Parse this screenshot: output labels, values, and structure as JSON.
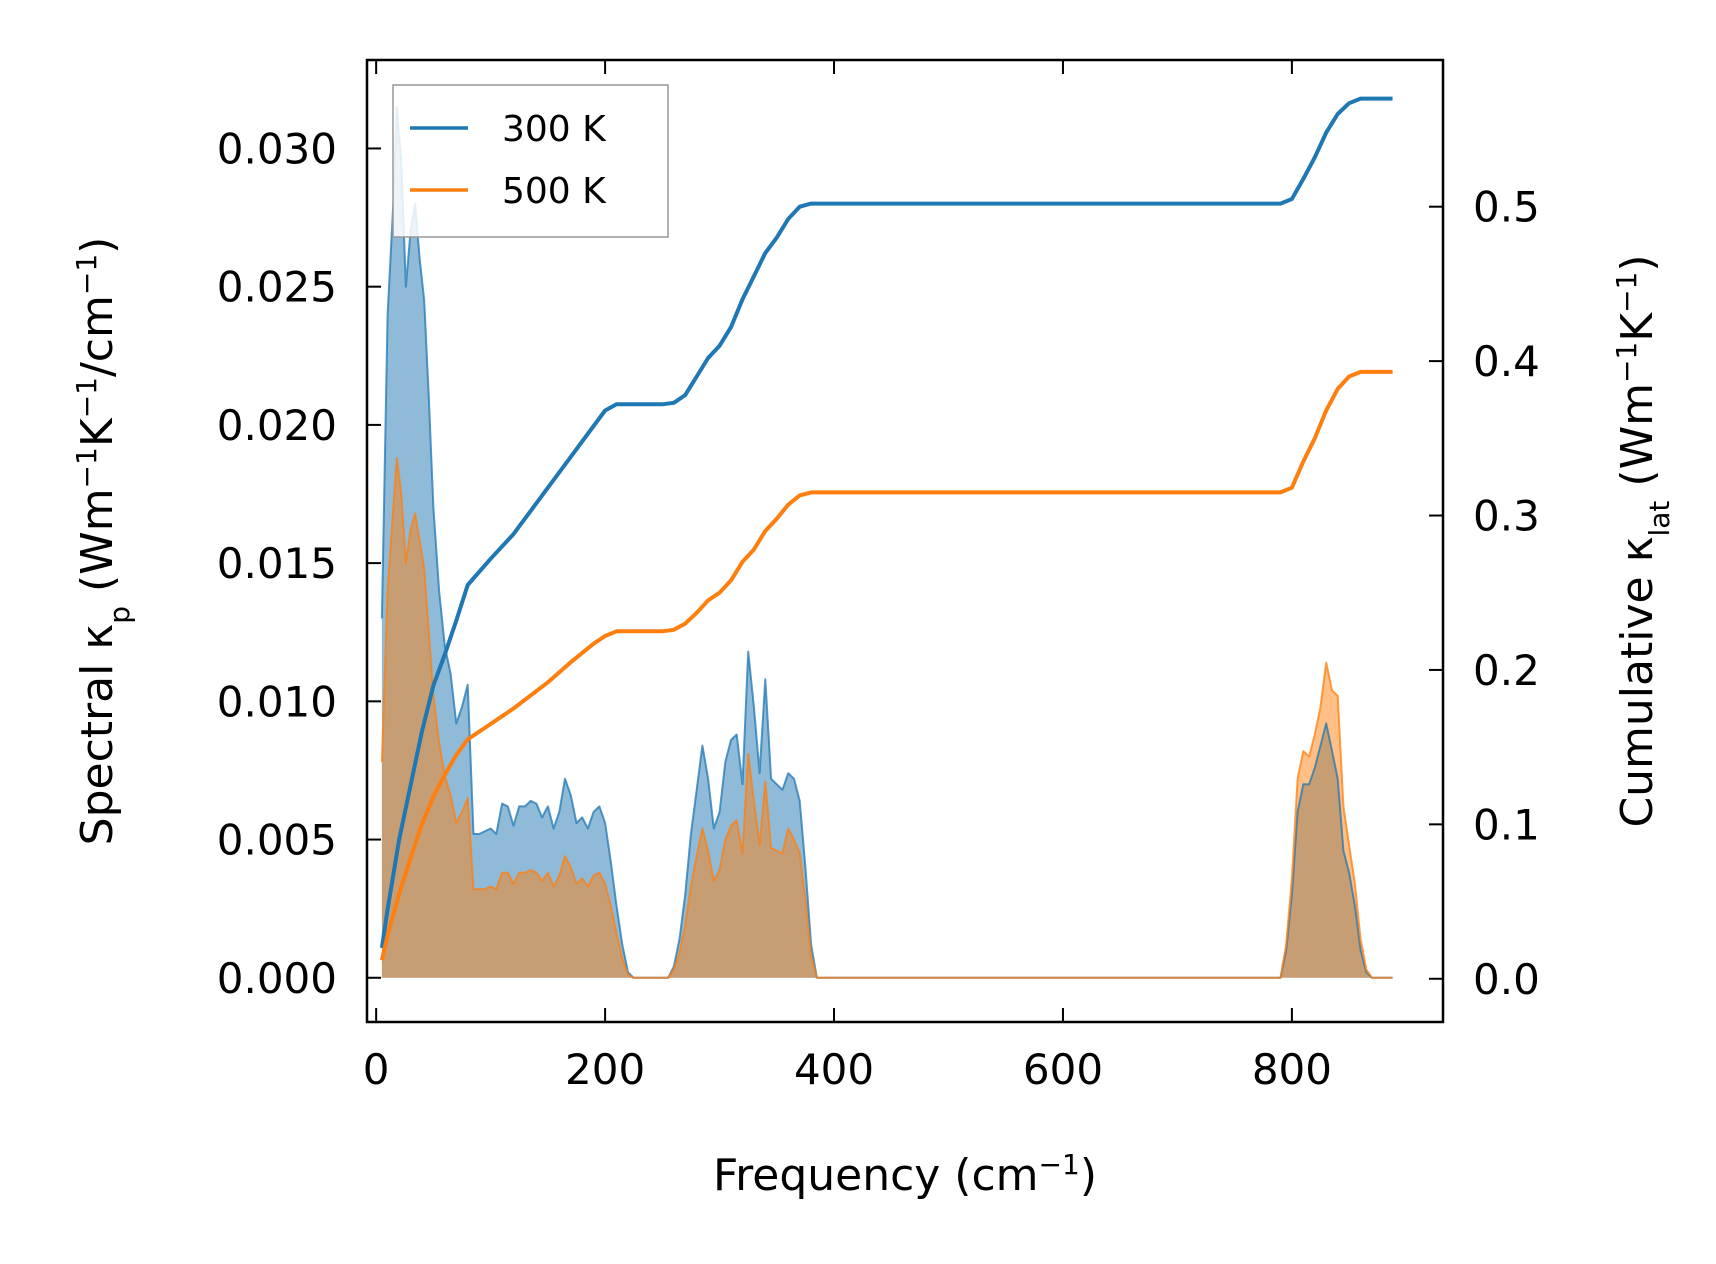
{
  "chart_data": {
    "type": "line",
    "xlabel": "Frequency (cm",
    "xlabel_sup": "−1",
    "xlabel_tail": ")",
    "ylabel_left": {
      "p1": "Spectral κ",
      "sub": "p",
      "p2": " (Wm",
      "sup1": "−1",
      "p3": "K",
      "sup2": "−1",
      "p4": "/cm",
      "sup3": "−1",
      "p5": ")"
    },
    "ylabel_right": {
      "p1": "Cumulative κ",
      "sub": "lat",
      "p2": " (Wm",
      "sup1": "−1",
      "p3": "K",
      "sup2": "−1",
      "p4": ")"
    },
    "xlim": [
      -8,
      932
    ],
    "ylim_left": [
      -0.0016,
      0.0332
    ],
    "ylim_right": [
      -0.028,
      0.595
    ],
    "x_ticks": [
      0,
      200,
      400,
      600,
      800
    ],
    "y_left_ticks": [
      "0.000",
      "0.005",
      "0.010",
      "0.015",
      "0.020",
      "0.025",
      "0.030"
    ],
    "y_right_ticks": [
      "0.0",
      "0.1",
      "0.2",
      "0.3",
      "0.4",
      "0.5"
    ],
    "legend": {
      "placement": "top-left"
    },
    "series": [
      {
        "name": "300 K",
        "color": "#1f77b4",
        "spectral": [
          [
            5,
            0.013
          ],
          [
            10,
            0.024
          ],
          [
            15,
            0.028
          ],
          [
            18,
            0.0315
          ],
          [
            22,
            0.0295
          ],
          [
            26,
            0.025
          ],
          [
            30,
            0.027
          ],
          [
            34,
            0.028
          ],
          [
            38,
            0.026
          ],
          [
            42,
            0.0245
          ],
          [
            46,
            0.021
          ],
          [
            50,
            0.017
          ],
          [
            55,
            0.014
          ],
          [
            60,
            0.012
          ],
          [
            65,
            0.011
          ],
          [
            70,
            0.0092
          ],
          [
            75,
            0.0098
          ],
          [
            80,
            0.0106
          ],
          [
            85,
            0.0052
          ],
          [
            90,
            0.0052
          ],
          [
            95,
            0.0053
          ],
          [
            100,
            0.0054
          ],
          [
            105,
            0.0052
          ],
          [
            110,
            0.0063
          ],
          [
            115,
            0.0062
          ],
          [
            120,
            0.0055
          ],
          [
            125,
            0.0062
          ],
          [
            130,
            0.0062
          ],
          [
            135,
            0.0064
          ],
          [
            140,
            0.0063
          ],
          [
            145,
            0.0058
          ],
          [
            150,
            0.0062
          ],
          [
            155,
            0.0054
          ],
          [
            160,
            0.006
          ],
          [
            165,
            0.0072
          ],
          [
            170,
            0.0066
          ],
          [
            175,
            0.0056
          ],
          [
            180,
            0.0058
          ],
          [
            185,
            0.0054
          ],
          [
            190,
            0.006
          ],
          [
            195,
            0.0062
          ],
          [
            200,
            0.0056
          ],
          [
            205,
            0.0042
          ],
          [
            210,
            0.0026
          ],
          [
            215,
            0.0012
          ],
          [
            220,
            0.0002
          ],
          [
            225,
            0
          ],
          [
            255,
            0
          ],
          [
            260,
            0.0004
          ],
          [
            265,
            0.0014
          ],
          [
            270,
            0.003
          ],
          [
            275,
            0.0052
          ],
          [
            280,
            0.0068
          ],
          [
            285,
            0.0084
          ],
          [
            290,
            0.0072
          ],
          [
            295,
            0.0054
          ],
          [
            300,
            0.006
          ],
          [
            305,
            0.0078
          ],
          [
            310,
            0.0086
          ],
          [
            315,
            0.0088
          ],
          [
            320,
            0.007
          ],
          [
            325,
            0.0118
          ],
          [
            330,
            0.0098
          ],
          [
            335,
            0.0074
          ],
          [
            340,
            0.0108
          ],
          [
            345,
            0.0072
          ],
          [
            350,
            0.007
          ],
          [
            355,
            0.0068
          ],
          [
            360,
            0.0074
          ],
          [
            365,
            0.0072
          ],
          [
            370,
            0.0064
          ],
          [
            375,
            0.004
          ],
          [
            380,
            0.0012
          ],
          [
            385,
            0
          ],
          [
            790,
            0
          ],
          [
            795,
            0.001
          ],
          [
            800,
            0.003
          ],
          [
            805,
            0.006
          ],
          [
            810,
            0.007
          ],
          [
            815,
            0.007
          ],
          [
            820,
            0.0076
          ],
          [
            825,
            0.0084
          ],
          [
            830,
            0.0092
          ],
          [
            835,
            0.0082
          ],
          [
            840,
            0.0072
          ],
          [
            845,
            0.0046
          ],
          [
            850,
            0.0038
          ],
          [
            855,
            0.0026
          ],
          [
            860,
            0.001
          ],
          [
            865,
            0.0002
          ],
          [
            870,
            0
          ],
          [
            888,
            0
          ]
        ],
        "cumulative": [
          [
            5,
            0.02
          ],
          [
            10,
            0.045
          ],
          [
            20,
            0.09
          ],
          [
            30,
            0.125
          ],
          [
            40,
            0.16
          ],
          [
            50,
            0.19
          ],
          [
            60,
            0.21
          ],
          [
            70,
            0.232
          ],
          [
            80,
            0.255
          ],
          [
            100,
            0.272
          ],
          [
            120,
            0.288
          ],
          [
            150,
            0.318
          ],
          [
            170,
            0.338
          ],
          [
            190,
            0.358
          ],
          [
            200,
            0.368
          ],
          [
            210,
            0.372
          ],
          [
            250,
            0.372
          ],
          [
            260,
            0.373
          ],
          [
            270,
            0.378
          ],
          [
            280,
            0.39
          ],
          [
            290,
            0.402
          ],
          [
            300,
            0.41
          ],
          [
            310,
            0.422
          ],
          [
            320,
            0.44
          ],
          [
            330,
            0.455
          ],
          [
            340,
            0.47
          ],
          [
            350,
            0.48
          ],
          [
            360,
            0.492
          ],
          [
            370,
            0.5
          ],
          [
            380,
            0.502
          ],
          [
            790,
            0.502
          ],
          [
            800,
            0.505
          ],
          [
            810,
            0.518
          ],
          [
            820,
            0.532
          ],
          [
            830,
            0.548
          ],
          [
            840,
            0.56
          ],
          [
            850,
            0.567
          ],
          [
            860,
            0.57
          ],
          [
            888,
            0.57
          ]
        ]
      },
      {
        "name": "500 K",
        "color": "#ff7f0e",
        "spectral": [
          [
            5,
            0.0078
          ],
          [
            10,
            0.014
          ],
          [
            15,
            0.017
          ],
          [
            18,
            0.0188
          ],
          [
            22,
            0.0175
          ],
          [
            26,
            0.015
          ],
          [
            30,
            0.0162
          ],
          [
            34,
            0.0168
          ],
          [
            38,
            0.0158
          ],
          [
            42,
            0.0148
          ],
          [
            46,
            0.0125
          ],
          [
            50,
            0.0102
          ],
          [
            55,
            0.0085
          ],
          [
            60,
            0.0073
          ],
          [
            65,
            0.0066
          ],
          [
            70,
            0.0056
          ],
          [
            75,
            0.006
          ],
          [
            80,
            0.0065
          ],
          [
            85,
            0.0032
          ],
          [
            90,
            0.0032
          ],
          [
            95,
            0.0032
          ],
          [
            100,
            0.0033
          ],
          [
            105,
            0.0032
          ],
          [
            110,
            0.0038
          ],
          [
            115,
            0.0038
          ],
          [
            120,
            0.0034
          ],
          [
            125,
            0.0038
          ],
          [
            130,
            0.0038
          ],
          [
            135,
            0.0039
          ],
          [
            140,
            0.0038
          ],
          [
            145,
            0.0035
          ],
          [
            150,
            0.0038
          ],
          [
            155,
            0.0033
          ],
          [
            160,
            0.0037
          ],
          [
            165,
            0.0044
          ],
          [
            170,
            0.004
          ],
          [
            175,
            0.0034
          ],
          [
            180,
            0.0036
          ],
          [
            185,
            0.0033
          ],
          [
            190,
            0.0037
          ],
          [
            195,
            0.0038
          ],
          [
            200,
            0.0034
          ],
          [
            205,
            0.0026
          ],
          [
            210,
            0.0016
          ],
          [
            215,
            0.0007
          ],
          [
            220,
            0.0001
          ],
          [
            225,
            0
          ],
          [
            255,
            0
          ],
          [
            260,
            0.0003
          ],
          [
            265,
            0.0009
          ],
          [
            270,
            0.0019
          ],
          [
            275,
            0.0033
          ],
          [
            280,
            0.0044
          ],
          [
            285,
            0.0054
          ],
          [
            290,
            0.0046
          ],
          [
            295,
            0.0035
          ],
          [
            300,
            0.0039
          ],
          [
            305,
            0.005
          ],
          [
            310,
            0.0055
          ],
          [
            315,
            0.0057
          ],
          [
            320,
            0.0045
          ],
          [
            325,
            0.0081
          ],
          [
            330,
            0.0064
          ],
          [
            335,
            0.0048
          ],
          [
            340,
            0.0071
          ],
          [
            345,
            0.0047
          ],
          [
            350,
            0.0046
          ],
          [
            355,
            0.0045
          ],
          [
            360,
            0.0054
          ],
          [
            365,
            0.005
          ],
          [
            370,
            0.0045
          ],
          [
            375,
            0.0028
          ],
          [
            380,
            0.0008
          ],
          [
            385,
            0
          ],
          [
            790,
            0
          ],
          [
            795,
            0.0012
          ],
          [
            800,
            0.0036
          ],
          [
            805,
            0.0072
          ],
          [
            810,
            0.0082
          ],
          [
            815,
            0.008
          ],
          [
            820,
            0.0088
          ],
          [
            825,
            0.0098
          ],
          [
            830,
            0.0114
          ],
          [
            835,
            0.0104
          ],
          [
            840,
            0.0102
          ],
          [
            845,
            0.0062
          ],
          [
            850,
            0.0048
          ],
          [
            855,
            0.0034
          ],
          [
            860,
            0.0014
          ],
          [
            865,
            0.0003
          ],
          [
            870,
            0
          ],
          [
            888,
            0
          ]
        ],
        "cumulative": [
          [
            5,
            0.012
          ],
          [
            10,
            0.028
          ],
          [
            20,
            0.055
          ],
          [
            30,
            0.078
          ],
          [
            40,
            0.1
          ],
          [
            50,
            0.118
          ],
          [
            60,
            0.132
          ],
          [
            70,
            0.145
          ],
          [
            80,
            0.155
          ],
          [
            100,
            0.165
          ],
          [
            120,
            0.175
          ],
          [
            150,
            0.192
          ],
          [
            170,
            0.205
          ],
          [
            190,
            0.217
          ],
          [
            200,
            0.222
          ],
          [
            210,
            0.225
          ],
          [
            250,
            0.225
          ],
          [
            260,
            0.226
          ],
          [
            270,
            0.23
          ],
          [
            280,
            0.237
          ],
          [
            290,
            0.245
          ],
          [
            300,
            0.25
          ],
          [
            310,
            0.258
          ],
          [
            320,
            0.27
          ],
          [
            330,
            0.278
          ],
          [
            340,
            0.29
          ],
          [
            350,
            0.298
          ],
          [
            360,
            0.307
          ],
          [
            370,
            0.313
          ],
          [
            380,
            0.315
          ],
          [
            790,
            0.315
          ],
          [
            800,
            0.318
          ],
          [
            810,
            0.335
          ],
          [
            820,
            0.35
          ],
          [
            830,
            0.368
          ],
          [
            840,
            0.382
          ],
          [
            850,
            0.39
          ],
          [
            860,
            0.393
          ],
          [
            888,
            0.393
          ]
        ]
      }
    ]
  }
}
